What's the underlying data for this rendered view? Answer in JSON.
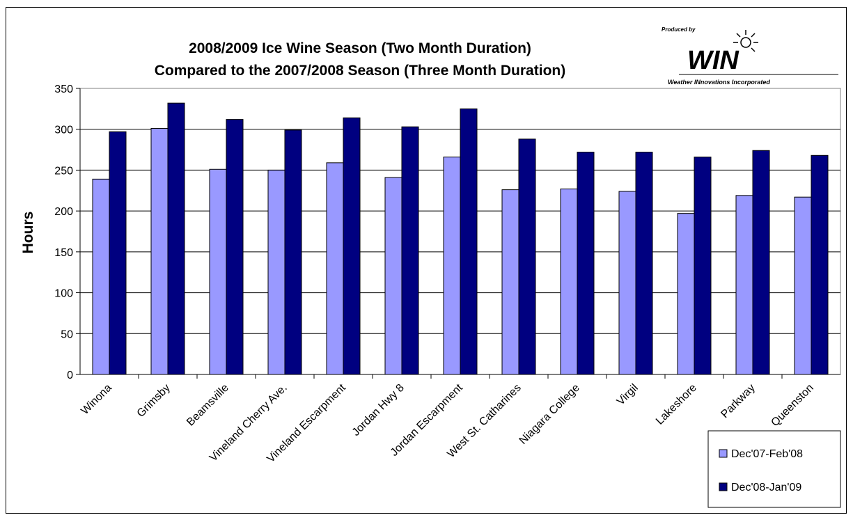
{
  "chart_data": {
    "type": "bar",
    "title_lines": [
      "2008/2009 Ice Wine Season (Two Month Duration)",
      "Compared to the 2007/2008 Season (Three Month Duration)"
    ],
    "xlabel": "",
    "ylabel": "Hours",
    "ylim": [
      0,
      350
    ],
    "yticks": [
      0,
      50,
      100,
      150,
      200,
      250,
      300,
      350
    ],
    "categories": [
      "Winona",
      "Grimsby",
      "Beamsville",
      "Vineland Cherry Ave.",
      "Vineland Escarpment",
      "Jordan Hwy 8",
      "Jordan Escarpment",
      "West St. Catharines",
      "Niagara College",
      "Virgil",
      "Lakeshore",
      "Parkway",
      "Queenston"
    ],
    "series": [
      {
        "name": "Dec'07-Feb'08",
        "color": "#9999ff",
        "values": [
          239,
          301,
          251,
          250,
          259,
          241,
          266,
          226,
          227,
          224,
          197,
          219,
          217
        ]
      },
      {
        "name": "Dec'08-Jan'09",
        "color": "#000080",
        "values": [
          297,
          332,
          312,
          299,
          314,
          303,
          325,
          288,
          272,
          272,
          266,
          274,
          268
        ]
      }
    ],
    "grid": true,
    "legend_position": "bottom-right"
  },
  "logo": {
    "produced_by": "Produced by",
    "brand": "WIN",
    "tagline": "Weather INnovations Incorporated",
    "icon": "sun-icon"
  }
}
